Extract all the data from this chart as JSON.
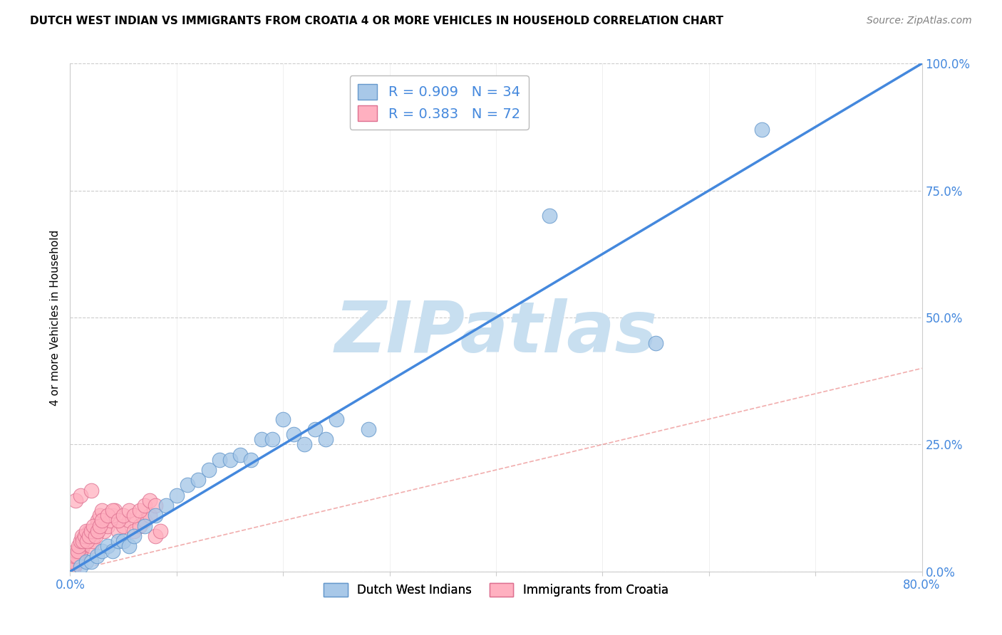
{
  "title": "DUTCH WEST INDIAN VS IMMIGRANTS FROM CROATIA 4 OR MORE VEHICLES IN HOUSEHOLD CORRELATION CHART",
  "source": "Source: ZipAtlas.com",
  "ylabel": "4 or more Vehicles in Household",
  "xlim": [
    0.0,
    80.0
  ],
  "ylim": [
    0.0,
    100.0
  ],
  "ytick_labels": [
    "0.0%",
    "25.0%",
    "50.0%",
    "75.0%",
    "100.0%"
  ],
  "ytick_values": [
    0,
    25,
    50,
    75,
    100
  ],
  "legend_label1": "Dutch West Indians",
  "legend_label2": "Immigrants from Croatia",
  "R1": 0.909,
  "N1": 34,
  "R2": 0.383,
  "N2": 72,
  "color_blue_fill": "#A8C8E8",
  "color_blue_edge": "#6699CC",
  "color_pink_fill": "#FFB0C0",
  "color_pink_edge": "#DD7090",
  "color_trend_blue": "#4488DD",
  "color_trend_pink": "#EE9999",
  "color_grid": "#CCCCCC",
  "watermark": "ZIPatlas",
  "watermark_color": "#C8DFF0",
  "blue_x": [
    1.0,
    1.5,
    2.0,
    2.5,
    3.0,
    3.5,
    4.0,
    4.5,
    5.0,
    5.5,
    6.0,
    7.0,
    8.0,
    9.0,
    10.0,
    11.0,
    12.0,
    13.0,
    14.0,
    15.0,
    16.0,
    17.0,
    18.0,
    19.0,
    20.0,
    21.0,
    22.0,
    23.0,
    24.0,
    25.0,
    28.0,
    45.0,
    55.0,
    65.0
  ],
  "blue_y": [
    1.0,
    2.0,
    2.0,
    3.0,
    4.0,
    5.0,
    4.0,
    6.0,
    6.0,
    5.0,
    7.0,
    9.0,
    11.0,
    13.0,
    15.0,
    17.0,
    18.0,
    20.0,
    22.0,
    22.0,
    23.0,
    22.0,
    26.0,
    26.0,
    30.0,
    27.0,
    25.0,
    28.0,
    26.0,
    30.0,
    28.0,
    70.0,
    45.0,
    87.0
  ],
  "pink_x": [
    0.3,
    0.4,
    0.5,
    0.6,
    0.7,
    0.8,
    0.9,
    1.0,
    1.0,
    1.1,
    1.2,
    1.3,
    1.4,
    1.5,
    1.6,
    1.7,
    1.8,
    2.0,
    2.1,
    2.2,
    2.3,
    2.5,
    2.6,
    2.8,
    3.0,
    3.2,
    3.5,
    3.8,
    4.0,
    4.2,
    4.5,
    5.0,
    5.5,
    6.0,
    6.5,
    7.0,
    7.5,
    8.0,
    8.5,
    0.2,
    0.3,
    0.4,
    0.5,
    0.6,
    0.7,
    0.8,
    1.0,
    1.1,
    1.2,
    1.4,
    1.5,
    1.6,
    1.8,
    2.0,
    2.2,
    2.4,
    2.6,
    2.8,
    3.0,
    3.5,
    4.0,
    4.5,
    5.0,
    5.5,
    6.0,
    6.5,
    7.0,
    7.5,
    8.0,
    0.5,
    1.0,
    2.0
  ],
  "pink_y": [
    0.5,
    1.0,
    1.5,
    2.0,
    2.5,
    3.0,
    3.5,
    4.0,
    5.0,
    4.5,
    5.0,
    5.5,
    6.0,
    6.5,
    7.0,
    7.5,
    8.0,
    5.0,
    6.0,
    7.0,
    8.0,
    9.0,
    10.0,
    11.0,
    12.0,
    8.0,
    9.0,
    10.0,
    11.0,
    12.0,
    8.0,
    9.0,
    10.0,
    8.0,
    9.0,
    10.0,
    11.0,
    7.0,
    8.0,
    1.0,
    2.0,
    3.0,
    4.0,
    3.0,
    4.0,
    5.0,
    6.0,
    7.0,
    6.0,
    7.0,
    8.0,
    6.0,
    7.0,
    8.0,
    9.0,
    7.0,
    8.0,
    9.0,
    10.0,
    11.0,
    12.0,
    10.0,
    11.0,
    12.0,
    11.0,
    12.0,
    13.0,
    14.0,
    13.0,
    14.0,
    15.0,
    16.0
  ],
  "trend_blue_x0": 0.0,
  "trend_blue_y0": 0.0,
  "trend_blue_x1": 80.0,
  "trend_blue_y1": 100.0,
  "trend_pink_x0": 0.0,
  "trend_pink_y0": 0.0,
  "trend_pink_x1": 80.0,
  "trend_pink_y1": 40.0,
  "xtick_positions": [
    0,
    10,
    20,
    30,
    40,
    50,
    60,
    70,
    80
  ],
  "title_fontsize": 11,
  "source_fontsize": 10,
  "axis_label_color": "#4488DD"
}
